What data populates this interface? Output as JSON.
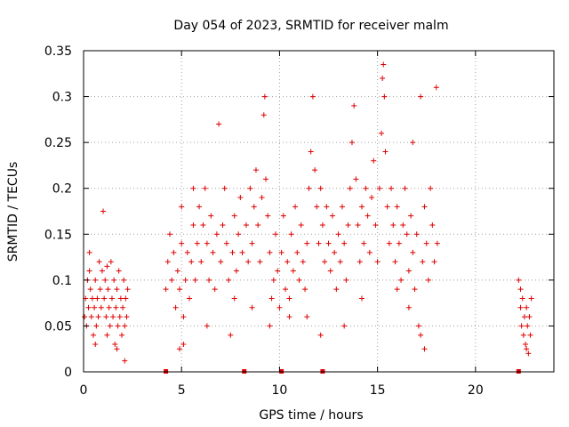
{
  "chart_data": {
    "type": "scatter",
    "title": "Day 054 of 2023, SRMTID for receiver malm",
    "xlabel": "GPS time / hours",
    "ylabel": "SRMTID / TECUs",
    "xlim": [
      0,
      24
    ],
    "ylim": [
      0,
      0.35
    ],
    "xticks": [
      0,
      5,
      10,
      15,
      20
    ],
    "xtick_labels": [
      "0",
      "5",
      "10",
      "15",
      "20"
    ],
    "yticks": [
      0,
      0.05,
      0.1,
      0.15,
      0.2,
      0.25,
      0.3,
      0.35
    ],
    "ytick_labels": [
      "0",
      "0.05",
      "0.1",
      "0.15",
      "0.2",
      "0.25",
      "0.3",
      "0.35"
    ],
    "grid": true,
    "marker": "+",
    "color": "#e00000",
    "zero_markers_x": [
      4.2,
      8.2,
      10.1,
      12.2,
      22.2
    ],
    "series": [
      {
        "name": "SRMTID",
        "points": [
          [
            0.05,
            0.06
          ],
          [
            0.1,
            0.08
          ],
          [
            0.15,
            0.05
          ],
          [
            0.2,
            0.1
          ],
          [
            0.25,
            0.07
          ],
          [
            0.3,
            0.11
          ],
          [
            0.35,
            0.09
          ],
          [
            0.4,
            0.06
          ],
          [
            0.45,
            0.08
          ],
          [
            0.5,
            0.04
          ],
          [
            0.55,
            0.07
          ],
          [
            0.6,
            0.1
          ],
          [
            0.65,
            0.05
          ],
          [
            0.7,
            0.08
          ],
          [
            0.75,
            0.06
          ],
          [
            0.8,
            0.12
          ],
          [
            0.85,
            0.09
          ],
          [
            0.9,
            0.07
          ],
          [
            0.95,
            0.11
          ],
          [
            1.0,
            0.175
          ],
          [
            1.05,
            0.08
          ],
          [
            1.1,
            0.1
          ],
          [
            1.15,
            0.06
          ],
          [
            1.2,
            0.04
          ],
          [
            1.25,
            0.09
          ],
          [
            1.3,
            0.07
          ],
          [
            1.35,
            0.05
          ],
          [
            1.4,
            0.12
          ],
          [
            1.45,
            0.08
          ],
          [
            1.5,
            0.06
          ],
          [
            1.55,
            0.1
          ],
          [
            1.6,
            0.03
          ],
          [
            1.65,
            0.07
          ],
          [
            1.7,
            0.09
          ],
          [
            1.75,
            0.05
          ],
          [
            1.8,
            0.11
          ],
          [
            1.85,
            0.06
          ],
          [
            1.9,
            0.08
          ],
          [
            1.95,
            0.04
          ],
          [
            2.0,
            0.07
          ],
          [
            2.05,
            0.1
          ],
          [
            2.1,
            0.05
          ],
          [
            2.15,
            0.08
          ],
          [
            2.2,
            0.06
          ],
          [
            2.25,
            0.09
          ],
          [
            0.3,
            0.13
          ],
          [
            0.6,
            0.03
          ],
          [
            1.2,
            0.115
          ],
          [
            1.7,
            0.025
          ],
          [
            2.1,
            0.012
          ],
          [
            4.2,
            0.09
          ],
          [
            4.3,
            0.12
          ],
          [
            4.4,
            0.15
          ],
          [
            4.5,
            0.1
          ],
          [
            4.6,
            0.13
          ],
          [
            4.7,
            0.07
          ],
          [
            4.8,
            0.11
          ],
          [
            4.9,
            0.09
          ],
          [
            5.0,
            0.14
          ],
          [
            5.1,
            0.06
          ],
          [
            5.2,
            0.1
          ],
          [
            5.3,
            0.13
          ],
          [
            5.4,
            0.08
          ],
          [
            5.5,
            0.12
          ],
          [
            5.6,
            0.16
          ],
          [
            5.7,
            0.1
          ],
          [
            5.8,
            0.14
          ],
          [
            5.9,
            0.18
          ],
          [
            6.0,
            0.12
          ],
          [
            6.1,
            0.16
          ],
          [
            6.2,
            0.2
          ],
          [
            6.3,
            0.14
          ],
          [
            6.4,
            0.1
          ],
          [
            6.5,
            0.17
          ],
          [
            6.6,
            0.13
          ],
          [
            6.7,
            0.09
          ],
          [
            6.8,
            0.15
          ],
          [
            6.9,
            0.27
          ],
          [
            7.0,
            0.12
          ],
          [
            7.1,
            0.16
          ],
          [
            7.2,
            0.2
          ],
          [
            7.3,
            0.14
          ],
          [
            7.4,
            0.1
          ],
          [
            7.5,
            0.04
          ],
          [
            7.6,
            0.13
          ],
          [
            7.7,
            0.17
          ],
          [
            7.8,
            0.11
          ],
          [
            7.9,
            0.15
          ],
          [
            8.0,
            0.19
          ],
          [
            8.1,
            0.13
          ],
          [
            4.9,
            0.025
          ],
          [
            5.1,
            0.03
          ],
          [
            5.0,
            0.18
          ],
          [
            5.6,
            0.2
          ],
          [
            6.3,
            0.05
          ],
          [
            7.7,
            0.08
          ],
          [
            8.3,
            0.16
          ],
          [
            8.4,
            0.12
          ],
          [
            8.5,
            0.2
          ],
          [
            8.6,
            0.14
          ],
          [
            8.7,
            0.18
          ],
          [
            8.8,
            0.22
          ],
          [
            8.9,
            0.16
          ],
          [
            9.0,
            0.12
          ],
          [
            9.1,
            0.19
          ],
          [
            9.2,
            0.28
          ],
          [
            9.25,
            0.3
          ],
          [
            9.3,
            0.21
          ],
          [
            9.4,
            0.17
          ],
          [
            9.5,
            0.13
          ],
          [
            9.6,
            0.08
          ],
          [
            9.7,
            0.1
          ],
          [
            9.8,
            0.15
          ],
          [
            9.9,
            0.11
          ],
          [
            10.0,
            0.07
          ],
          [
            10.1,
            0.13
          ],
          [
            10.2,
            0.17
          ],
          [
            10.3,
            0.09
          ],
          [
            10.4,
            0.12
          ],
          [
            10.5,
            0.08
          ],
          [
            10.6,
            0.15
          ],
          [
            10.7,
            0.11
          ],
          [
            10.8,
            0.18
          ],
          [
            10.9,
            0.13
          ],
          [
            11.0,
            0.1
          ],
          [
            11.1,
            0.16
          ],
          [
            11.2,
            0.12
          ],
          [
            11.3,
            0.09
          ],
          [
            11.4,
            0.14
          ],
          [
            11.5,
            0.2
          ],
          [
            11.6,
            0.24
          ],
          [
            11.7,
            0.3
          ],
          [
            11.8,
            0.22
          ],
          [
            11.9,
            0.18
          ],
          [
            12.0,
            0.14
          ],
          [
            12.1,
            0.2
          ],
          [
            12.2,
            0.16
          ],
          [
            12.3,
            0.12
          ],
          [
            12.4,
            0.18
          ],
          [
            12.5,
            0.14
          ],
          [
            12.6,
            0.11
          ],
          [
            12.7,
            0.17
          ],
          [
            12.8,
            0.13
          ],
          [
            12.9,
            0.09
          ],
          [
            13.0,
            0.15
          ],
          [
            13.1,
            0.12
          ],
          [
            13.2,
            0.18
          ],
          [
            13.3,
            0.14
          ],
          [
            13.4,
            0.1
          ],
          [
            13.5,
            0.16
          ],
          [
            13.6,
            0.2
          ],
          [
            13.7,
            0.25
          ],
          [
            13.8,
            0.29
          ],
          [
            13.9,
            0.21
          ],
          [
            14.0,
            0.16
          ],
          [
            14.1,
            0.12
          ],
          [
            14.2,
            0.18
          ],
          [
            14.3,
            0.14
          ],
          [
            14.4,
            0.2
          ],
          [
            14.5,
            0.17
          ],
          [
            14.6,
            0.13
          ],
          [
            14.7,
            0.19
          ],
          [
            14.8,
            0.23
          ],
          [
            14.9,
            0.16
          ],
          [
            15.0,
            0.12
          ],
          [
            15.1,
            0.2
          ],
          [
            15.2,
            0.26
          ],
          [
            15.25,
            0.32
          ],
          [
            15.3,
            0.335
          ],
          [
            15.35,
            0.3
          ],
          [
            15.4,
            0.24
          ],
          [
            15.5,
            0.18
          ],
          [
            15.6,
            0.14
          ],
          [
            15.7,
            0.2
          ],
          [
            15.8,
            0.16
          ],
          [
            15.9,
            0.12
          ],
          [
            16.0,
            0.18
          ],
          [
            16.1,
            0.14
          ],
          [
            16.2,
            0.1
          ],
          [
            16.3,
            0.16
          ],
          [
            16.4,
            0.2
          ],
          [
            16.5,
            0.15
          ],
          [
            16.6,
            0.11
          ],
          [
            16.7,
            0.17
          ],
          [
            16.8,
            0.13
          ],
          [
            16.9,
            0.09
          ],
          [
            17.0,
            0.15
          ],
          [
            17.1,
            0.05
          ],
          [
            17.2,
            0.04
          ],
          [
            17.3,
            0.12
          ],
          [
            17.4,
            0.18
          ],
          [
            17.5,
            0.14
          ],
          [
            17.6,
            0.1
          ],
          [
            17.7,
            0.2
          ],
          [
            17.8,
            0.16
          ],
          [
            17.9,
            0.12
          ],
          [
            18.0,
            0.31
          ],
          [
            18.05,
            0.14
          ],
          [
            17.2,
            0.3
          ],
          [
            16.8,
            0.25
          ],
          [
            11.4,
            0.06
          ],
          [
            12.1,
            0.04
          ],
          [
            13.3,
            0.05
          ],
          [
            14.2,
            0.08
          ],
          [
            16.0,
            0.09
          ],
          [
            16.6,
            0.07
          ],
          [
            17.4,
            0.025
          ],
          [
            10.5,
            0.06
          ],
          [
            9.5,
            0.05
          ],
          [
            8.6,
            0.07
          ],
          [
            22.2,
            0.1
          ],
          [
            22.3,
            0.07
          ],
          [
            22.35,
            0.05
          ],
          [
            22.4,
            0.08
          ],
          [
            22.45,
            0.04
          ],
          [
            22.5,
            0.06
          ],
          [
            22.55,
            0.03
          ],
          [
            22.6,
            0.07
          ],
          [
            22.65,
            0.05
          ],
          [
            22.7,
            0.02
          ],
          [
            22.75,
            0.06
          ],
          [
            22.8,
            0.04
          ],
          [
            22.85,
            0.08
          ],
          [
            22.3,
            0.09
          ],
          [
            22.6,
            0.025
          ]
        ]
      }
    ]
  }
}
